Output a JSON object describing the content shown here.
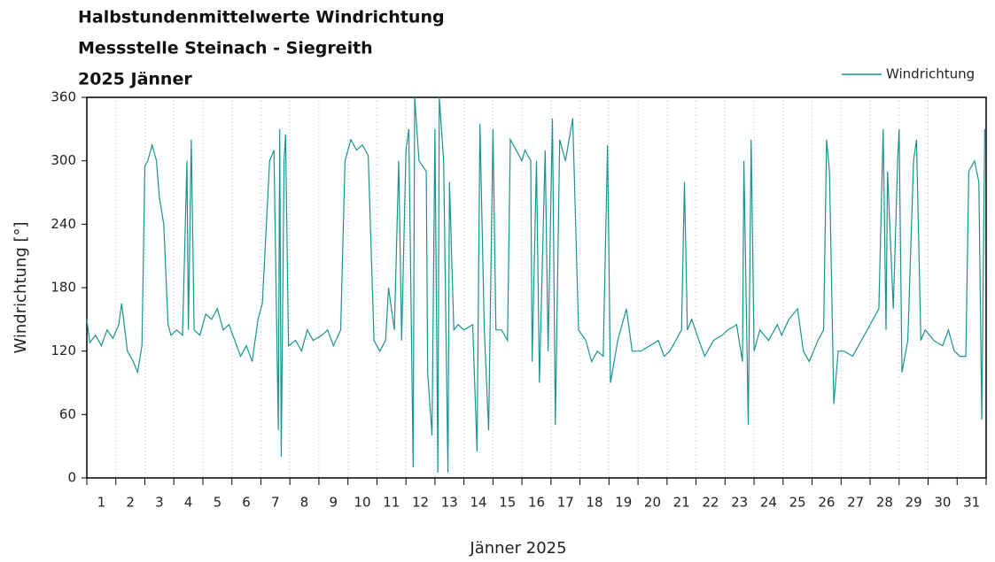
{
  "chart_data": {
    "type": "line",
    "title": "Halbstundenmittelwerte Windrichtung",
    "subtitle": "Messstelle Steinach - Siegreith",
    "period": "2025 Jänner",
    "xlabel": "Jänner 2025",
    "ylabel": "Windrichtung [°]",
    "categories": [
      "1",
      "2",
      "3",
      "4",
      "5",
      "6",
      "7",
      "8",
      "9",
      "10",
      "11",
      "12",
      "13",
      "14",
      "15",
      "16",
      "17",
      "18",
      "19",
      "20",
      "21",
      "22",
      "23",
      "24",
      "25",
      "26",
      "27",
      "28",
      "29",
      "30",
      "31"
    ],
    "xlim": [
      0,
      31
    ],
    "xticks": [
      0,
      1,
      2,
      3,
      4,
      5,
      6,
      7,
      8,
      9,
      10,
      11,
      12,
      13,
      14,
      15,
      16,
      17,
      18,
      19,
      20,
      21,
      22,
      23,
      24,
      25,
      26,
      27,
      28,
      29,
      30,
      31
    ],
    "ylim": [
      0,
      360
    ],
    "yticks": [
      0,
      60,
      120,
      180,
      240,
      300,
      360
    ],
    "grid": "x",
    "legend": "top-right",
    "x": [
      0.0,
      0.1,
      0.3,
      0.5,
      0.7,
      0.9,
      1.1,
      1.2,
      1.4,
      1.6,
      1.75,
      1.9,
      2.0,
      2.1,
      2.25,
      2.4,
      2.5,
      2.65,
      2.8,
      2.9,
      3.1,
      3.3,
      3.45,
      3.5,
      3.6,
      3.7,
      3.9,
      4.1,
      4.3,
      4.5,
      4.7,
      4.9,
      5.1,
      5.3,
      5.5,
      5.7,
      5.9,
      6.05,
      6.3,
      6.45,
      6.6,
      6.65,
      6.7,
      6.8,
      6.85,
      6.95,
      7.2,
      7.4,
      7.6,
      7.8,
      8.1,
      8.3,
      8.5,
      8.75,
      8.9,
      9.1,
      9.3,
      9.5,
      9.7,
      9.9,
      10.1,
      10.3,
      10.4,
      10.6,
      10.75,
      10.85,
      11.0,
      11.1,
      11.25,
      11.3,
      11.45,
      11.7,
      11.75,
      11.9,
      12.0,
      12.1,
      12.15,
      12.3,
      12.45,
      12.5,
      12.65,
      12.8,
      13.0,
      13.3,
      13.45,
      13.55,
      13.7,
      13.85,
      14.0,
      14.1,
      14.3,
      14.5,
      14.6,
      14.8,
      15.0,
      15.1,
      15.3,
      15.35,
      15.5,
      15.6,
      15.8,
      15.9,
      16.05,
      16.15,
      16.3,
      16.5,
      16.75,
      16.95,
      17.2,
      17.4,
      17.6,
      17.8,
      17.95,
      18.05,
      18.3,
      18.6,
      18.8,
      19.1,
      19.4,
      19.7,
      19.9,
      20.1,
      20.5,
      20.6,
      20.7,
      20.85,
      21.1,
      21.3,
      21.6,
      21.9,
      22.1,
      22.4,
      22.6,
      22.65,
      22.8,
      22.9,
      23.0,
      23.2,
      23.5,
      23.8,
      23.95,
      24.2,
      24.5,
      24.7,
      24.9,
      25.2,
      25.4,
      25.5,
      25.6,
      25.75,
      25.9,
      26.1,
      26.4,
      26.7,
      26.9,
      27.1,
      27.3,
      27.45,
      27.55,
      27.6,
      27.8,
      27.95,
      28.0,
      28.1,
      28.3,
      28.5,
      28.6,
      28.75,
      28.9,
      29.2,
      29.5,
      29.7,
      29.9,
      30.1,
      30.3,
      30.4,
      30.6,
      30.75,
      30.85,
      30.95
    ],
    "series": [
      {
        "name": "Windrichtung",
        "color": "#1a9490",
        "values": [
          150,
          128,
          135,
          125,
          140,
          132,
          145,
          165,
          120,
          110,
          100,
          125,
          295,
          300,
          315,
          300,
          265,
          240,
          145,
          135,
          140,
          135,
          300,
          140,
          320,
          140,
          135,
          155,
          150,
          160,
          140,
          145,
          130,
          115,
          125,
          110,
          150,
          165,
          300,
          310,
          45,
          330,
          20,
          300,
          325,
          125,
          130,
          120,
          140,
          130,
          135,
          140,
          125,
          140,
          300,
          320,
          310,
          315,
          305,
          130,
          120,
          130,
          180,
          140,
          300,
          130,
          310,
          330,
          10,
          360,
          300,
          290,
          100,
          40,
          330,
          5,
          360,
          300,
          5,
          280,
          140,
          145,
          140,
          145,
          25,
          335,
          140,
          45,
          330,
          140,
          140,
          130,
          320,
          310,
          300,
          310,
          300,
          110,
          300,
          90,
          310,
          120,
          340,
          50,
          320,
          300,
          340,
          140,
          130,
          110,
          120,
          115,
          315,
          90,
          130,
          160,
          120,
          120,
          125,
          130,
          115,
          120,
          140,
          280,
          140,
          150,
          130,
          115,
          130,
          135,
          140,
          145,
          110,
          300,
          50,
          320,
          120,
          140,
          130,
          145,
          135,
          150,
          160,
          120,
          110,
          130,
          140,
          320,
          290,
          70,
          120,
          120,
          115,
          130,
          140,
          150,
          160,
          330,
          140,
          290,
          160,
          300,
          330,
          100,
          130,
          300,
          320,
          130,
          140,
          130,
          125,
          140,
          120,
          115,
          115,
          290,
          300,
          280,
          55,
          330
        ]
      }
    ]
  }
}
